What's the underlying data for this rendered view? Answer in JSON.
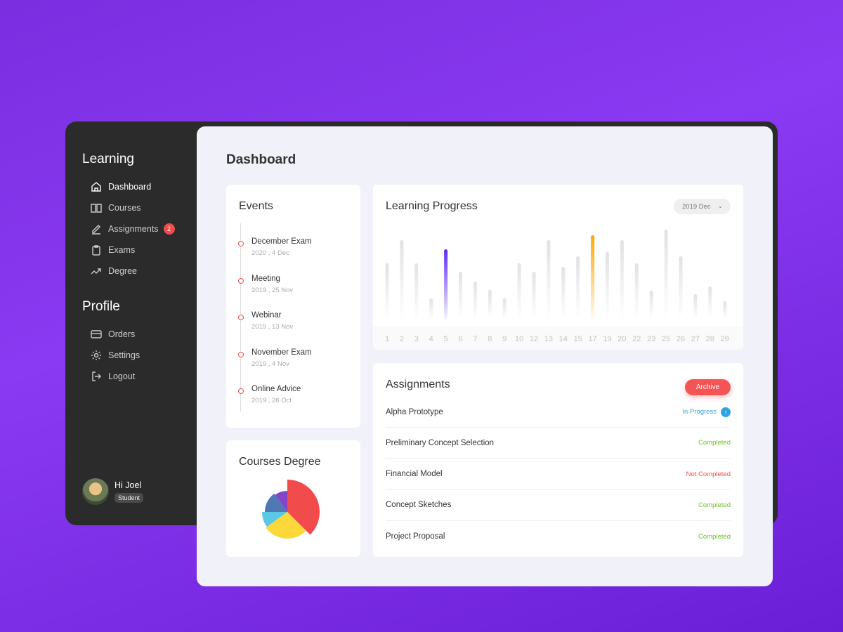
{
  "sidebar": {
    "learning_title": "Learning",
    "learning_items": [
      {
        "label": "Dashboard",
        "icon": "home-icon",
        "active": true
      },
      {
        "label": "Courses",
        "icon": "book-icon"
      },
      {
        "label": "Assignments",
        "icon": "pen-icon",
        "badge": "2"
      },
      {
        "label": "Exams",
        "icon": "clipboard-icon"
      },
      {
        "label": "Degree",
        "icon": "trend-icon"
      }
    ],
    "profile_title": "Profile",
    "profile_items": [
      {
        "label": "Orders",
        "icon": "card-icon"
      },
      {
        "label": "Settings",
        "icon": "gear-icon"
      },
      {
        "label": "Logout",
        "icon": "logout-icon"
      }
    ],
    "user": {
      "greeting": "Hi Joel",
      "role": "Student"
    }
  },
  "main": {
    "title": "Dashboard",
    "events": {
      "title": "Events",
      "items": [
        {
          "name": "December Exam",
          "date": "2020 , 4 Dec"
        },
        {
          "name": "Meeting",
          "date": "2019 , 25 Nov"
        },
        {
          "name": "Webinar",
          "date": "2019 , 13 Nov"
        },
        {
          "name": "November Exam",
          "date": "2019 , 4 Nov"
        },
        {
          "name": "Online Advice",
          "date": "2019 , 26 Oct"
        }
      ]
    },
    "progress": {
      "title": "Learning Progress",
      "period": "2019 Dec"
    },
    "degree": {
      "title": "Courses Degree"
    },
    "assignments": {
      "title": "Assignments",
      "archive_label": "Archive",
      "rows": [
        {
          "name": "Alpha Prototype",
          "status": "In Progress",
          "color": "#2ea3e0"
        },
        {
          "name": "Preliminary Concept Selection",
          "status": "Completed",
          "color": "#6cbf2a"
        },
        {
          "name": "Financial Model",
          "status": "Not Completed",
          "color": "#f24b4b"
        },
        {
          "name": "Concept Sketches",
          "status": "Completed",
          "color": "#6cbf2a"
        },
        {
          "name": "Project Proposal",
          "status": "Completed",
          "color": "#6cbf2a"
        }
      ]
    }
  },
  "chart_data": [
    {
      "type": "bar",
      "categories": [
        "1",
        "2",
        "3",
        "4",
        "5",
        "6",
        "7",
        "8",
        "9",
        "10",
        "12",
        "13",
        "14",
        "15",
        "17",
        "19",
        "20",
        "22",
        "23",
        "25",
        "26",
        "27",
        "28",
        "29"
      ],
      "values": [
        80,
        113,
        80,
        30,
        100,
        68,
        54,
        42,
        30,
        80,
        68,
        113,
        75,
        90,
        120,
        96,
        113,
        80,
        41,
        128,
        90,
        36,
        47,
        26
      ],
      "highlight": {
        "5": "#5b2ef0",
        "17": "#ffa800"
      },
      "bar_color": "#e3e3e3",
      "grid": false
    },
    {
      "type": "pie",
      "values": [
        37.5,
        27.5,
        10,
        15,
        10
      ],
      "colors": [
        "#f24b4b",
        "#fcd83a",
        "#5bc8e6",
        "#4f78b5",
        "#8446c8"
      ]
    }
  ]
}
